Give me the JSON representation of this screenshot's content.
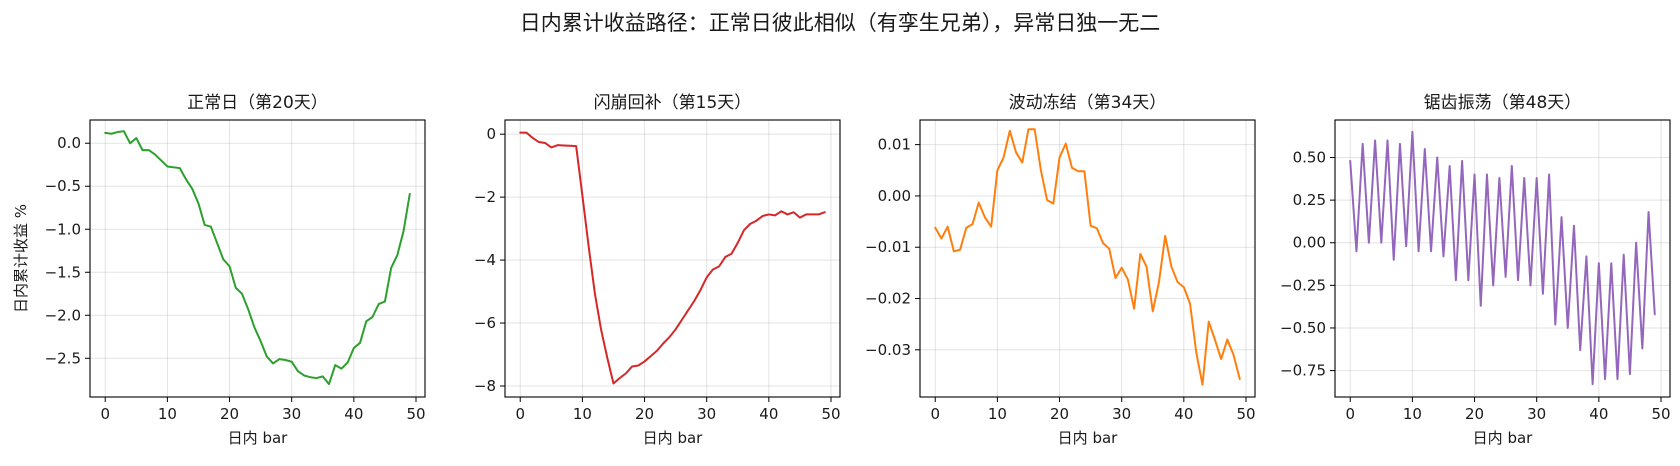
{
  "figure": {
    "title": "日内累计收益路径：正常日彼此相似（有孪生兄弟），异常日独一无二"
  },
  "chart_data": [
    {
      "type": "line",
      "title": "正常日（第20天）",
      "xlabel": "日内 bar",
      "ylabel": "日内累计收益 %",
      "color": "#2ca02c",
      "grid": true,
      "xlim": [
        -2.45,
        51.45
      ],
      "ylim": [
        -2.95,
        0.27
      ],
      "xticks": [
        0,
        10,
        20,
        30,
        40,
        50
      ],
      "yticks": [
        0.0,
        -0.5,
        -1.0,
        -1.5,
        -2.0,
        -2.5
      ],
      "ytick_labels": [
        "0.0",
        "−0.5",
        "−1.0",
        "−1.5",
        "−2.0",
        "−2.5"
      ],
      "x": [
        0,
        1,
        2,
        3,
        4,
        5,
        6,
        7,
        8,
        9,
        10,
        11,
        12,
        13,
        14,
        15,
        16,
        17,
        18,
        19,
        20,
        21,
        22,
        23,
        24,
        25,
        26,
        27,
        28,
        29,
        30,
        31,
        32,
        33,
        34,
        35,
        36,
        37,
        38,
        39,
        40,
        41,
        42,
        43,
        44,
        45,
        46,
        47,
        48,
        49
      ],
      "values": [
        0.12,
        0.11,
        0.13,
        0.14,
        0.0,
        0.06,
        -0.08,
        -0.08,
        -0.13,
        -0.2,
        -0.27,
        -0.28,
        -0.29,
        -0.42,
        -0.53,
        -0.7,
        -0.95,
        -0.97,
        -1.16,
        -1.35,
        -1.43,
        -1.68,
        -1.75,
        -1.93,
        -2.14,
        -2.3,
        -2.48,
        -2.56,
        -2.51,
        -2.52,
        -2.54,
        -2.65,
        -2.7,
        -2.72,
        -2.73,
        -2.71,
        -2.8,
        -2.58,
        -2.62,
        -2.55,
        -2.38,
        -2.32,
        -2.07,
        -2.02,
        -1.87,
        -1.84,
        -1.45,
        -1.3,
        -1.02,
        -0.59
      ]
    },
    {
      "type": "line",
      "title": "闪崩回补（第15天）",
      "xlabel": "日内 bar",
      "ylabel": "",
      "color": "#d62728",
      "grid": true,
      "xlim": [
        -2.45,
        51.45
      ],
      "ylim": [
        -8.35,
        0.45
      ],
      "xticks": [
        0,
        10,
        20,
        30,
        40,
        50
      ],
      "yticks": [
        0,
        -2,
        -4,
        -6,
        -8
      ],
      "ytick_labels": [
        "0",
        "−2",
        "−4",
        "−6",
        "−8"
      ],
      "x": [
        0,
        1,
        2,
        3,
        4,
        5,
        6,
        7,
        8,
        9,
        10,
        11,
        12,
        13,
        14,
        15,
        16,
        17,
        18,
        19,
        20,
        21,
        22,
        23,
        24,
        25,
        26,
        27,
        28,
        29,
        30,
        31,
        32,
        33,
        34,
        35,
        36,
        37,
        38,
        39,
        40,
        41,
        42,
        43,
        44,
        45,
        46,
        47,
        48,
        49
      ],
      "values": [
        0.05,
        0.05,
        -0.12,
        -0.25,
        -0.28,
        -0.42,
        -0.35,
        -0.36,
        -0.37,
        -0.38,
        -1.95,
        -3.55,
        -5.05,
        -6.2,
        -7.1,
        -7.92,
        -7.75,
        -7.6,
        -7.38,
        -7.35,
        -7.22,
        -7.05,
        -6.88,
        -6.65,
        -6.45,
        -6.2,
        -5.9,
        -5.6,
        -5.3,
        -4.95,
        -4.55,
        -4.3,
        -4.2,
        -3.9,
        -3.8,
        -3.45,
        -3.05,
        -2.85,
        -2.75,
        -2.6,
        -2.55,
        -2.58,
        -2.45,
        -2.55,
        -2.48,
        -2.65,
        -2.55,
        -2.55,
        -2.55,
        -2.48
      ]
    },
    {
      "type": "line",
      "title": "波动冻结（第34天）",
      "xlabel": "日内 bar",
      "ylabel": "",
      "color": "#ff7f0e",
      "grid": true,
      "xlim": [
        -2.45,
        51.45
      ],
      "ylim": [
        -0.0392,
        0.0148
      ],
      "xticks": [
        0,
        10,
        20,
        30,
        40,
        50
      ],
      "yticks": [
        0.01,
        0.0,
        -0.01,
        -0.02,
        -0.03
      ],
      "ytick_labels": [
        "0.01",
        "0.00",
        "−0.01",
        "−0.02",
        "−0.03"
      ],
      "x": [
        0,
        1,
        2,
        3,
        4,
        5,
        6,
        7,
        8,
        9,
        10,
        11,
        12,
        13,
        14,
        15,
        16,
        17,
        18,
        19,
        20,
        21,
        22,
        23,
        24,
        25,
        26,
        27,
        28,
        29,
        30,
        31,
        32,
        33,
        34,
        35,
        36,
        37,
        38,
        39,
        40,
        41,
        42,
        43,
        44,
        45,
        46,
        47,
        48,
        49
      ],
      "values": [
        -0.0062,
        -0.0083,
        -0.006,
        -0.0108,
        -0.0105,
        -0.0062,
        -0.0055,
        -0.0013,
        -0.0042,
        -0.006,
        0.005,
        0.0075,
        0.0127,
        0.0085,
        0.0065,
        0.013,
        0.013,
        0.005,
        -0.0008,
        -0.0015,
        0.0075,
        0.0102,
        0.0055,
        0.0048,
        0.0048,
        -0.0058,
        -0.0063,
        -0.0092,
        -0.0103,
        -0.016,
        -0.014,
        -0.0163,
        -0.022,
        -0.0113,
        -0.0138,
        -0.0225,
        -0.0168,
        -0.0078,
        -0.0138,
        -0.0168,
        -0.0178,
        -0.021,
        -0.0305,
        -0.0368,
        -0.0245,
        -0.028,
        -0.0318,
        -0.028,
        -0.031,
        -0.0357
      ]
    },
    {
      "type": "line",
      "title": "锯齿振荡（第48天）",
      "xlabel": "日内 bar",
      "ylabel": "",
      "color": "#9467bd",
      "grid": true,
      "xlim": [
        -2.45,
        51.45
      ],
      "ylim": [
        -0.905,
        0.72
      ],
      "xticks": [
        0,
        10,
        20,
        30,
        40,
        50
      ],
      "yticks": [
        0.5,
        0.25,
        0.0,
        -0.25,
        -0.5,
        -0.75
      ],
      "ytick_labels": [
        "0.50",
        "0.25",
        "0.00",
        "−0.25",
        "−0.50",
        "−0.75"
      ],
      "x": [
        0,
        1,
        2,
        3,
        4,
        5,
        6,
        7,
        8,
        9,
        10,
        11,
        12,
        13,
        14,
        15,
        16,
        17,
        18,
        19,
        20,
        21,
        22,
        23,
        24,
        25,
        26,
        27,
        28,
        29,
        30,
        31,
        32,
        33,
        34,
        35,
        36,
        37,
        38,
        39,
        40,
        41,
        42,
        43,
        44,
        45,
        46,
        47,
        48,
        49
      ],
      "values": [
        0.48,
        -0.05,
        0.58,
        0.0,
        0.6,
        0.0,
        0.6,
        -0.1,
        0.58,
        -0.02,
        0.65,
        -0.05,
        0.55,
        -0.05,
        0.5,
        -0.08,
        0.45,
        -0.22,
        0.48,
        -0.22,
        0.4,
        -0.37,
        0.4,
        -0.25,
        0.38,
        -0.2,
        0.45,
        -0.22,
        0.38,
        -0.25,
        0.38,
        -0.3,
        0.4,
        -0.48,
        0.15,
        -0.5,
        0.1,
        -0.63,
        -0.08,
        -0.83,
        -0.12,
        -0.8,
        -0.12,
        -0.8,
        -0.07,
        -0.77,
        0.0,
        -0.62,
        0.18,
        -0.42
      ]
    }
  ]
}
